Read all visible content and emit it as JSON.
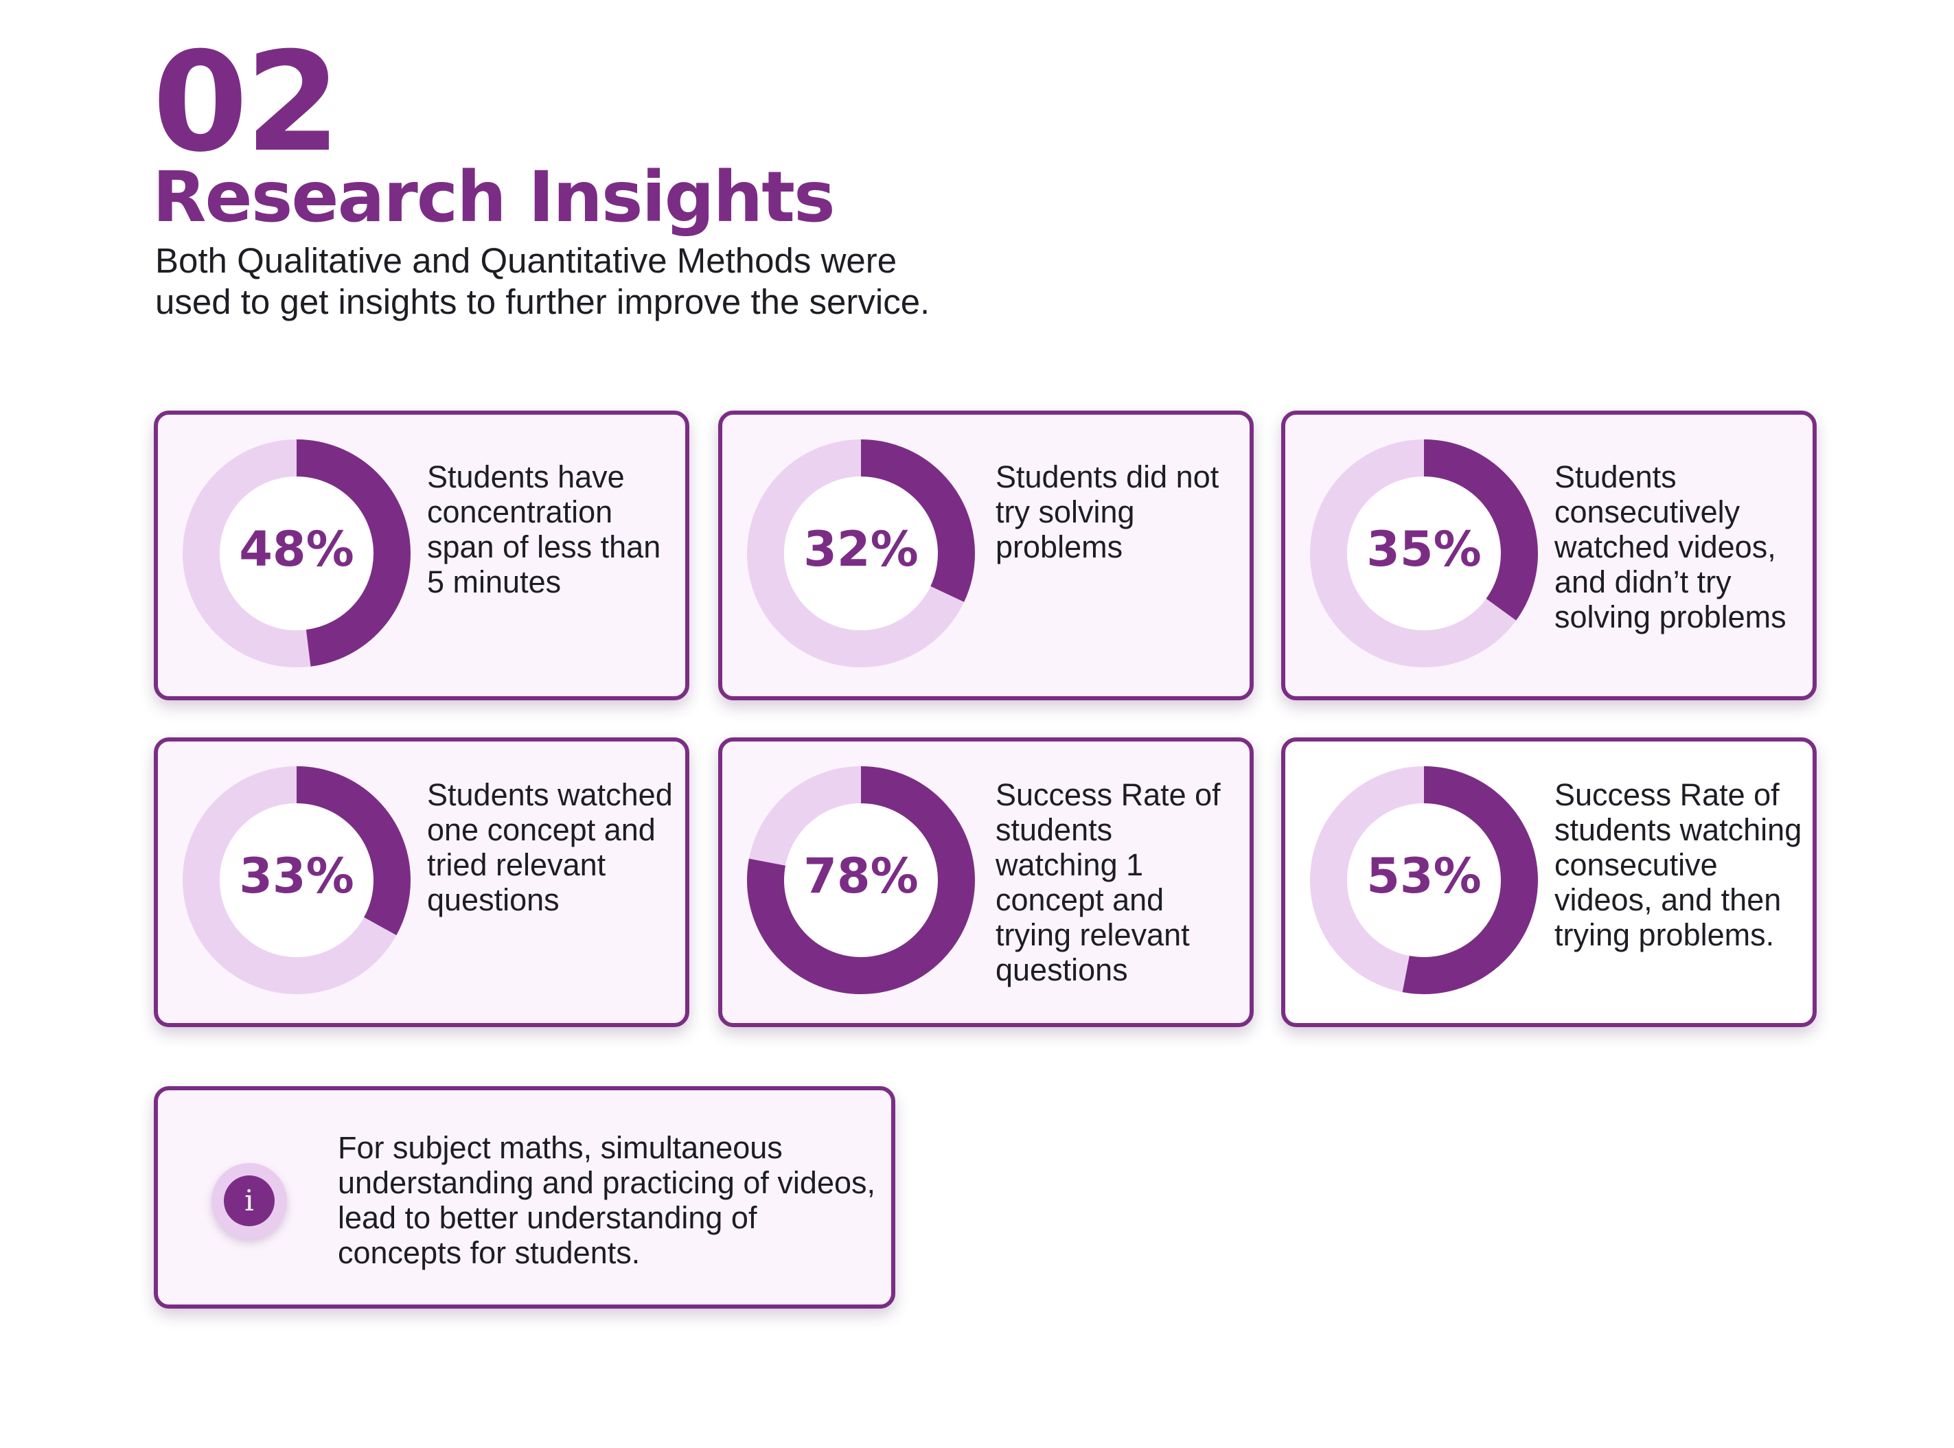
{
  "header": {
    "number": "02",
    "title": "Research Insights",
    "description": "Both Qualitative and Quantitative Methods were used to get insights to further improve the service."
  },
  "colors": {
    "accent": "#7b2d85",
    "track": "#ecd2f1",
    "card_bg": "#fbf4fc"
  },
  "cards": [
    {
      "percent": 48,
      "label": "48%",
      "text": "Students have concentration span of less than 5 minutes"
    },
    {
      "percent": 32,
      "label": "32%",
      "text": "Students did not try solving problems"
    },
    {
      "percent": 35,
      "label": "35%",
      "text": "Students consecutively watched videos, and didn’t try solving problems"
    },
    {
      "percent": 33,
      "label": "33%",
      "text": "Students watched one concept and tried relevant questions"
    },
    {
      "percent": 78,
      "label": "78%",
      "text": "Success Rate of students watching 1 concept and trying relevant questions"
    },
    {
      "percent": 53,
      "label": "53%",
      "text": "Success Rate of students watching consecutive videos, and then trying problems."
    }
  ],
  "note": {
    "icon": "info-icon",
    "icon_glyph": "i",
    "text": "For subject maths, simultaneous understanding and practicing of videos, lead to better understanding of concepts for students."
  }
}
